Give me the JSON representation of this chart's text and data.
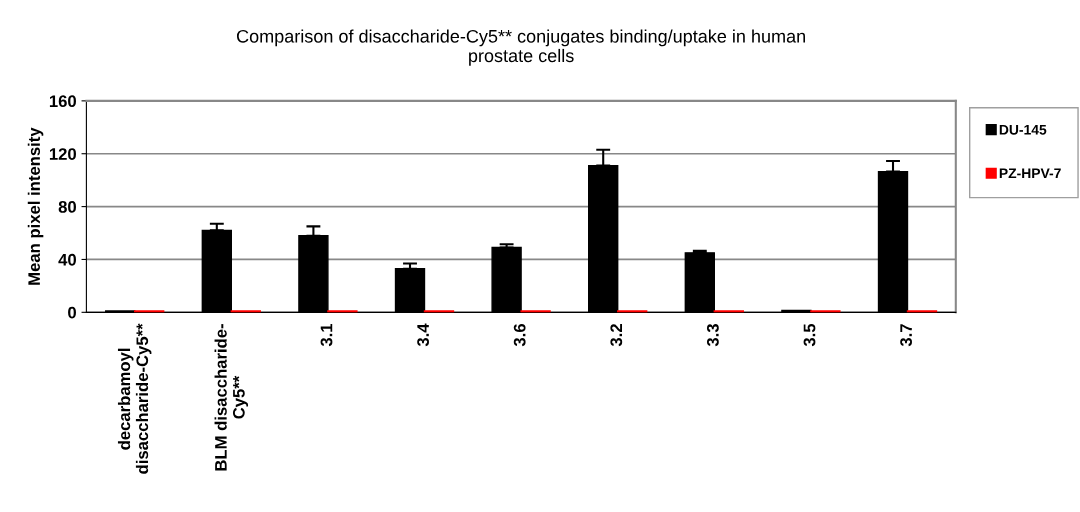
{
  "chart_data": {
    "type": "bar",
    "title": "Comparison of disaccharide-Cy5** conjugates binding/uptake in human\nprostate cells",
    "ylabel": "Mean pixel intensity",
    "categories": [
      "decarbamoyl\ndisaccharide-Cy5**",
      "BLM disaccharide-\nCy5**",
      "3.1",
      "3.4",
      "3.6",
      "3.2",
      "3.3",
      "3.5",
      "3.7"
    ],
    "series": [
      {
        "name": "DU-145",
        "color": "#000000",
        "values": [
          1,
          62,
          58,
          33,
          49,
          111,
          45,
          1.5,
          106.5
        ],
        "errors": [
          null,
          5,
          7,
          4,
          2.5,
          12,
          1.5,
          null,
          8
        ]
      },
      {
        "name": "PZ-HPV-7",
        "color": "#ff0000",
        "values": [
          1,
          1,
          1,
          1,
          1,
          1,
          1,
          1,
          1
        ]
      }
    ],
    "ylim": [
      0,
      160
    ],
    "yticks": [
      0,
      40,
      80,
      120,
      160
    ],
    "grid": "y",
    "legend": "right"
  }
}
